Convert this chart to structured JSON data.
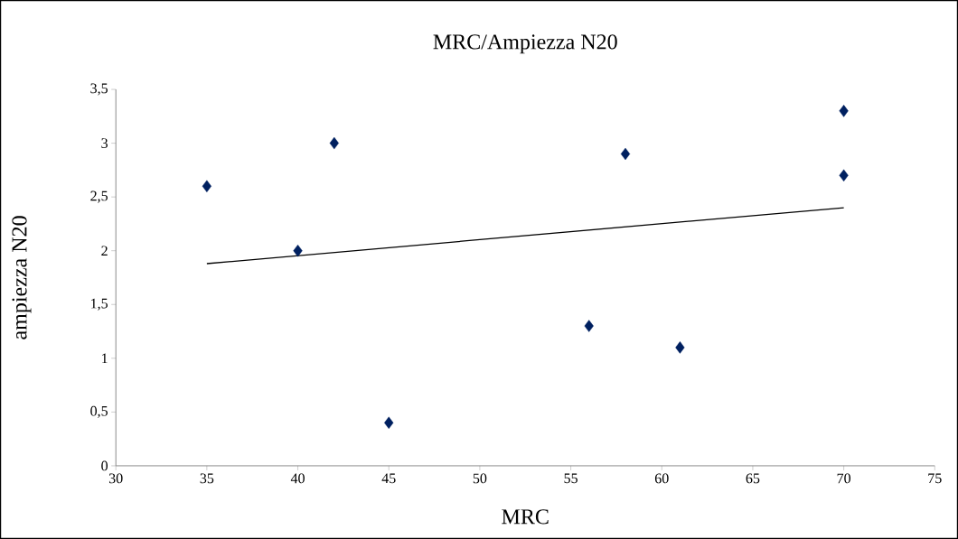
{
  "chart_data": {
    "type": "scatter",
    "title": "MRC/Ampiezza N20",
    "xlabel": "MRC",
    "ylabel": "ampiezza N20",
    "xlim": [
      30,
      75
    ],
    "xticks": [
      30,
      35,
      40,
      45,
      50,
      55,
      60,
      65,
      70,
      75
    ],
    "ylim": [
      0,
      3.5
    ],
    "yticks": [
      0,
      {
        "value": 0.5,
        "label": "0,5"
      },
      1,
      {
        "value": 1.5,
        "label": "1,5"
      },
      2,
      {
        "value": 2.5,
        "label": "2,5"
      },
      3,
      {
        "value": 3.5,
        "label": "3,5"
      }
    ],
    "series": [
      {
        "color": "#002060",
        "marker": "diamond",
        "x": [
          35,
          40,
          42,
          45,
          56,
          58,
          61,
          70,
          70
        ],
        "values": [
          2.6,
          2.0,
          3.0,
          0.4,
          1.3,
          2.9,
          1.1,
          3.3,
          2.7
        ]
      },
      {
        "type": "line",
        "color": "#000000",
        "x": [
          35,
          70
        ],
        "values": [
          1.88,
          2.4
        ]
      }
    ]
  }
}
